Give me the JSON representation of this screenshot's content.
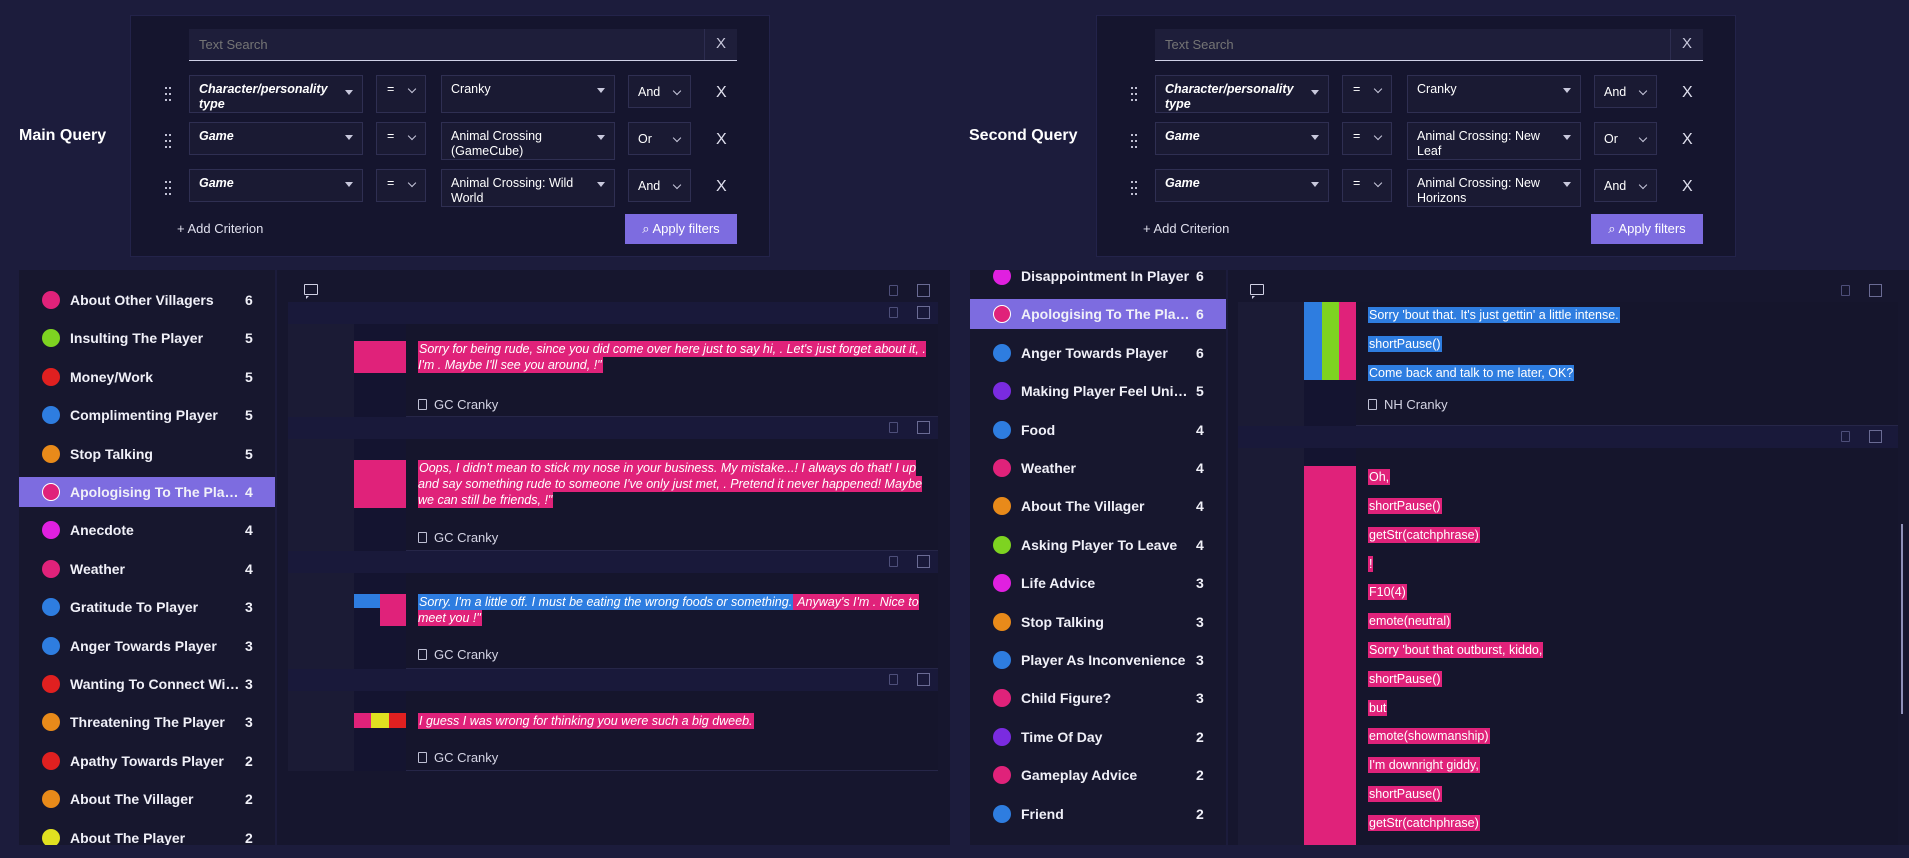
{
  "main_query": {
    "label": "Main Query",
    "search_placeholder": "Text Search",
    "clear_glyph": "X",
    "criteria": [
      {
        "field": "Character/personality type",
        "op": "=",
        "value": "Cranky",
        "joiner": "And"
      },
      {
        "field": "Game",
        "op": "=",
        "value": "Animal Crossing (GameCube)",
        "joiner": "Or"
      },
      {
        "field": "Game",
        "op": "=",
        "value": "Animal Crossing: Wild World",
        "joiner": "And"
      }
    ],
    "delete_glyph": "X",
    "add_criterion": "+ Add Criterion",
    "apply_filters": "Apply filters"
  },
  "second_query": {
    "label": "Second Query",
    "search_placeholder": "Text Search",
    "clear_glyph": "X",
    "criteria": [
      {
        "field": "Character/personality type",
        "op": "=",
        "value": "Cranky",
        "joiner": "And"
      },
      {
        "field": "Game",
        "op": "=",
        "value": "Animal Crossing: New Leaf",
        "joiner": "Or"
      },
      {
        "field": "Game",
        "op": "=",
        "value": "Animal Crossing: New Horizons",
        "joiner": "And"
      }
    ],
    "delete_glyph": "X",
    "add_criterion": "+ Add Criterion",
    "apply_filters": "Apply filters"
  },
  "left_sidebar": [
    {
      "label": "About Other Villagers",
      "count": "6",
      "color": "#e0227a"
    },
    {
      "label": "Insulting The Player",
      "count": "5",
      "color": "#7ed321"
    },
    {
      "label": "Money/Work",
      "count": "5",
      "color": "#e02020"
    },
    {
      "label": "Complimenting Player",
      "count": "5",
      "color": "#2e7de0"
    },
    {
      "label": "Stop Talking",
      "count": "5",
      "color": "#e88a1a"
    },
    {
      "label": "Apologising To The Player",
      "count": "4",
      "color": "#e0227a",
      "active": true
    },
    {
      "label": "Anecdote",
      "count": "4",
      "color": "#e020e0"
    },
    {
      "label": "Weather",
      "count": "4",
      "color": "#e0227a"
    },
    {
      "label": "Gratitude To Player",
      "count": "3",
      "color": "#2e7de0"
    },
    {
      "label": "Anger Towards Player",
      "count": "3",
      "color": "#2e7de0"
    },
    {
      "label": "Wanting To Connect With Player",
      "count": "3",
      "color": "#e02020"
    },
    {
      "label": "Threatening The Player",
      "count": "3",
      "color": "#e88a1a"
    },
    {
      "label": "Apathy Towards Player",
      "count": "2",
      "color": "#e02020"
    },
    {
      "label": "About The Villager",
      "count": "2",
      "color": "#e88a1a"
    },
    {
      "label": "About The Player",
      "count": "2",
      "color": "#e0e020"
    }
  ],
  "right_sidebar": [
    {
      "label": "Disappointment In Player",
      "count": "6",
      "color": "#e020e0"
    },
    {
      "label": "Apologising To The Player",
      "count": "6",
      "color": "#e0227a",
      "active": true
    },
    {
      "label": "Anger Towards Player",
      "count": "6",
      "color": "#2e7de0"
    },
    {
      "label": "Making Player Feel Unique",
      "count": "5",
      "color": "#7a2be0"
    },
    {
      "label": "Food",
      "count": "4",
      "color": "#2e7de0"
    },
    {
      "label": "Weather",
      "count": "4",
      "color": "#e0227a"
    },
    {
      "label": "About The Villager",
      "count": "4",
      "color": "#e88a1a"
    },
    {
      "label": "Asking Player To Leave",
      "count": "4",
      "color": "#7ed321"
    },
    {
      "label": "Life Advice",
      "count": "3",
      "color": "#e020e0"
    },
    {
      "label": "Stop Talking",
      "count": "3",
      "color": "#e88a1a"
    },
    {
      "label": "Player As Inconvenience",
      "count": "3",
      "color": "#2e7de0"
    },
    {
      "label": "Child Figure?",
      "count": "3",
      "color": "#e0227a"
    },
    {
      "label": "Time Of Day",
      "count": "2",
      "color": "#7a2be0"
    },
    {
      "label": "Gameplay Advice",
      "count": "2",
      "color": "#e0227a"
    },
    {
      "label": "Friend",
      "count": "2",
      "color": "#2e7de0"
    }
  ],
  "left_results": [
    {
      "text": "Sorry for being rude, since you did come over here just to say hi, . Let's just forget about it, . I'm . Maybe I'll see you around, !\"",
      "source": "GC Cranky"
    },
    {
      "text": "Oops, I didn't mean to stick my nose in your business. My mistake...! I always do that! I up and say something rude to someone I've only just met, . Pretend it never happened! Maybe we can still be friends, !\"",
      "source": "GC Cranky"
    },
    {
      "text_blue": "Sorry. I'm a little off. I must be eating the wrong foods or something.",
      "text_pink": " Anyway's I'm . Nice to meet you !\"",
      "source": "GC Cranky"
    },
    {
      "text": "I guess I was wrong for thinking you were such a big dweeb.",
      "source": "GC Cranky"
    }
  ],
  "right_results": [
    {
      "lines": [
        "Sorry 'bout that. It's just gettin' a little intense.",
        "shortPause()",
        "Come back and talk to me later, OK?"
      ],
      "source": "NH Cranky"
    },
    {
      "lines": [
        "Oh,",
        "shortPause()",
        "getStr(catchphrase)",
        "!",
        "F10(4)",
        "emote(neutral)",
        "Sorry 'bout that outburst, kiddo,",
        "shortPause()",
        "but",
        "emote(showmanship)",
        "I'm downright giddy,",
        "shortPause()",
        "getStr(catchphrase)"
      ]
    }
  ],
  "colors": {
    "accent": "#7d6ce0",
    "highlight_pink": "#e0227a",
    "highlight_blue": "#2e7de0"
  }
}
